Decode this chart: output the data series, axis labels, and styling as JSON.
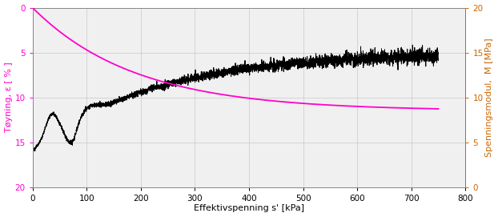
{
  "xlabel": "Effektivspenning s' [kPa]",
  "ylabel_left": "Tøyning, ε [ % ]",
  "ylabel_right": "Spenningsmodul,  M [MPa]",
  "xlim": [
    0,
    800
  ],
  "ylim_left": [
    0.0,
    20.0
  ],
  "ylim_right": [
    0.0,
    20.0
  ],
  "left_ticks": [
    0.0,
    5.0,
    10.0,
    15.0,
    20.0
  ],
  "right_ticks": [
    0.0,
    5.0,
    10.0,
    15.0,
    20.0
  ],
  "xticks": [
    0,
    100,
    200,
    300,
    400,
    500,
    600,
    700,
    800
  ],
  "grid_color": "#c8c8c8",
  "bg_color": "#f0f0f0",
  "line_black_color": "#000000",
  "line_magenta_color": "#ff00cc",
  "left_axis_color": "#ff00cc",
  "right_axis_color": "#cc6600",
  "font_size": 8,
  "label_fontsize": 8,
  "tick_fontsize": 7.5
}
